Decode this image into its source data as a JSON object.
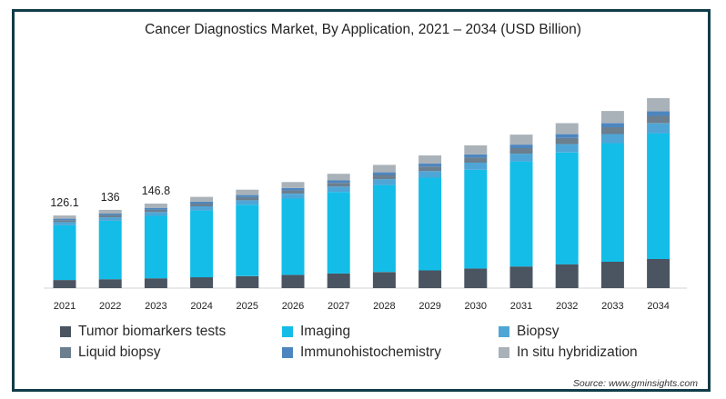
{
  "colors": {
    "Tumor biomarkers tests": "#4a5561",
    "Imaging": "#13bde8",
    "Biopsy": "#4fa6d6",
    "Liquid biopsy": "#6b7f8f",
    "Immunohistochemistry": "#4d86bf",
    "In situ hybridization": "#aab2b9"
  },
  "chart_data": {
    "type": "bar",
    "stacked": true,
    "title": "Cancer Diagnostics Market, By Application, 2021 – 2034 (USD Billion)",
    "categories": [
      "2021",
      "2022",
      "2023",
      "2024",
      "2025",
      "2026",
      "2027",
      "2028",
      "2029",
      "2030",
      "2031",
      "2032",
      "2033",
      "2034"
    ],
    "series": [
      {
        "name": "Tumor biomarkers tests",
        "values": [
          14.1,
          15.5,
          17.1,
          18.9,
          20.9,
          23.0,
          25.4,
          28.0,
          30.9,
          34.1,
          37.6,
          41.5,
          45.8,
          50.5
        ]
      },
      {
        "name": "Imaging",
        "values": [
          95.0,
          101.5,
          108.5,
          116.0,
          124.0,
          132.5,
          141.5,
          151.0,
          161.0,
          171.5,
          182.5,
          194.0,
          206.0,
          218.5
        ]
      },
      {
        "name": "Biopsy",
        "values": [
          5.5,
          6.0,
          6.6,
          7.2,
          7.9,
          8.6,
          9.4,
          10.3,
          11.3,
          12.3,
          13.4,
          14.6,
          15.9,
          17.3
        ]
      },
      {
        "name": "Liquid biopsy",
        "values": [
          3.5,
          3.9,
          4.3,
          4.8,
          5.3,
          5.9,
          6.5,
          7.2,
          8.0,
          8.8,
          9.7,
          10.7,
          11.8,
          13.0
        ]
      },
      {
        "name": "Immunohistochemistry",
        "values": [
          2.5,
          2.7,
          3.0,
          3.3,
          3.6,
          3.9,
          4.3,
          4.7,
          5.1,
          5.6,
          6.1,
          6.7,
          7.3,
          8.0
        ]
      },
      {
        "name": "In situ hybridization",
        "values": [
          5.5,
          6.4,
          7.3,
          8.3,
          9.3,
          10.4,
          11.6,
          12.9,
          14.3,
          15.8,
          17.4,
          19.1,
          20.9,
          22.9
        ]
      }
    ],
    "data_labels": [
      {
        "category": "2021",
        "text": "126.1"
      },
      {
        "category": "2022",
        "text": "136"
      },
      {
        "category": "2023",
        "text": "146.8"
      }
    ],
    "ylim": [
      0,
      390
    ],
    "grid": false,
    "legend": "bottom"
  },
  "source": "Source: www.gminsights.com"
}
